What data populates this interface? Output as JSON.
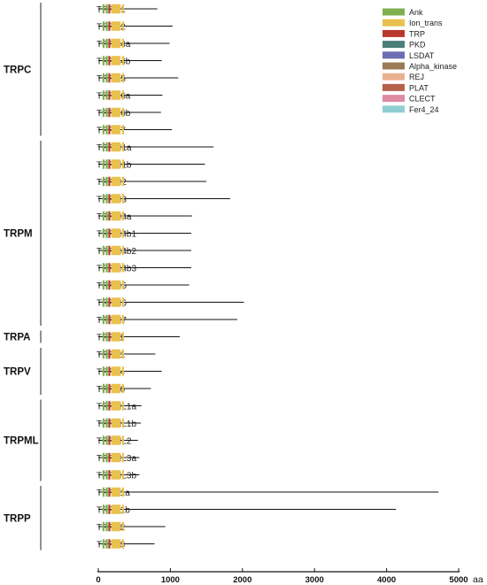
{
  "families": [
    {
      "name": "TRPC",
      "members": [
        "TRPC1",
        "TRPC2",
        "TRPC4a",
        "TRPC4b",
        "TRPC5",
        "TRPC6a",
        "TRPC6b",
        "TRPC7"
      ]
    },
    {
      "name": "TRPM",
      "members": [
        "TRPM1a",
        "TRPM1b",
        "TRPM2",
        "TRPM3",
        "TRPM4a",
        "TRPM4b1",
        "TRPM4b2",
        "TRPM4b3",
        "TRPM5",
        "TRPM6",
        "TRPM7"
      ]
    },
    {
      "name": "TRPA",
      "members": [
        "TRPA1"
      ]
    },
    {
      "name": "TRPV",
      "members": [
        "TRPV1",
        "TRPV4",
        "TRPV6"
      ]
    },
    {
      "name": "TRPML",
      "members": [
        "TRPML1a",
        "TRPML1b",
        "TRPML2",
        "TRPML3a",
        "TRPML3b"
      ]
    },
    {
      "name": "TRPP",
      "members": [
        "TRPP1a",
        "TRPP1b",
        "TRPP2",
        "TRPP3"
      ]
    }
  ],
  "legend": [
    {
      "label": "Ank",
      "color": "#7fb050"
    },
    {
      "label": "Ion_trans",
      "color": "#e8c14e"
    },
    {
      "label": "TRP",
      "color": "#b9382e"
    },
    {
      "label": "PKD",
      "color": "#4a7f7a"
    },
    {
      "label": "LSDAT",
      "color": "#6f6db5"
    },
    {
      "label": "Alpha_kinase",
      "color": "#9a7b57"
    },
    {
      "label": "REJ",
      "color": "#eab190"
    },
    {
      "label": "PLAT",
      "color": "#b5604a"
    },
    {
      "label": "CLECT",
      "color": "#de8aa0"
    },
    {
      "label": "Fer4_24",
      "color": "#8fcfd3"
    }
  ],
  "axis": {
    "ticks": [
      0,
      1000,
      2000,
      3000,
      4000,
      5000
    ],
    "tick_labels": [
      "0",
      "1000",
      "2000",
      "3000",
      "4000",
      "5000"
    ],
    "unit": "aa"
  },
  "proteins": {
    "TRPC1": {
      "length": 820,
      "domains": [
        [
          "Ank",
          60,
          85
        ],
        [
          "Ank",
          105,
          130
        ],
        [
          "TRP",
          140,
          165
        ],
        [
          "Ion_trans",
          180,
          310
        ],
        [
          "Ion_trans",
          330,
          345
        ]
      ]
    },
    "TRPC2": {
      "length": 1030,
      "domains": [
        [
          "Ank",
          60,
          85
        ],
        [
          "Ank",
          105,
          130
        ],
        [
          "TRP",
          140,
          165
        ],
        [
          "Ion_trans",
          180,
          310
        ],
        [
          "Ion_trans",
          330,
          345
        ]
      ]
    },
    "TRPC4a": {
      "length": 990,
      "domains": [
        [
          "Ank",
          60,
          85
        ],
        [
          "Ank",
          105,
          130
        ],
        [
          "TRP",
          140,
          165
        ],
        [
          "Ion_trans",
          180,
          310
        ],
        [
          "Ion_trans",
          330,
          345
        ]
      ]
    },
    "TRPC4b": {
      "length": 880,
      "domains": [
        [
          "Ank",
          60,
          85
        ],
        [
          "Ank",
          105,
          130
        ],
        [
          "TRP",
          140,
          165
        ],
        [
          "Ion_trans",
          180,
          310
        ],
        [
          "Ion_trans",
          330,
          345
        ]
      ]
    },
    "TRPC5": {
      "length": 1110,
      "domains": [
        [
          "Ank",
          60,
          85
        ],
        [
          "Ank",
          105,
          130
        ],
        [
          "TRP",
          140,
          165
        ],
        [
          "Ion_trans",
          180,
          310
        ],
        [
          "Ion_trans",
          330,
          345
        ]
      ]
    },
    "TRPC6a": {
      "length": 890,
      "domains": [
        [
          "Ank",
          60,
          85
        ],
        [
          "Ank",
          105,
          130
        ],
        [
          "TRP",
          140,
          165
        ],
        [
          "Ion_trans",
          180,
          310
        ],
        [
          "Ion_trans",
          330,
          345
        ]
      ]
    },
    "TRPC6b": {
      "length": 870,
      "domains": [
        [
          "Ank",
          60,
          85
        ],
        [
          "Ank",
          105,
          130
        ],
        [
          "TRP",
          140,
          165
        ],
        [
          "Ion_trans",
          180,
          310
        ],
        [
          "Ion_trans",
          330,
          345
        ]
      ]
    },
    "TRPC7": {
      "length": 1020,
      "domains": [
        [
          "Ank",
          60,
          85
        ],
        [
          "Ank",
          105,
          130
        ],
        [
          "TRP",
          140,
          165
        ],
        [
          "Ion_trans",
          180,
          310
        ],
        [
          "Ion_trans",
          330,
          345
        ]
      ]
    },
    "TRPM1a": {
      "length": 1600,
      "domains": [
        [
          "Ank",
          60,
          85
        ],
        [
          "Ank",
          105,
          130
        ],
        [
          "TRP",
          140,
          165
        ],
        [
          "Ion_trans",
          180,
          310
        ],
        [
          "Ion_trans",
          330,
          345
        ]
      ]
    },
    "TRPM1b": {
      "length": 1480,
      "domains": [
        [
          "Ank",
          60,
          85
        ],
        [
          "Ank",
          105,
          130
        ],
        [
          "TRP",
          140,
          165
        ],
        [
          "Ion_trans",
          180,
          310
        ],
        [
          "Ion_trans",
          330,
          345
        ]
      ]
    },
    "TRPM2": {
      "length": 1500,
      "domains": [
        [
          "Ank",
          60,
          85
        ],
        [
          "Ank",
          105,
          130
        ],
        [
          "TRP",
          140,
          165
        ],
        [
          "Ion_trans",
          180,
          310
        ],
        [
          "Ion_trans",
          330,
          345
        ]
      ]
    },
    "TRPM3": {
      "length": 1830,
      "domains": [
        [
          "Ank",
          60,
          85
        ],
        [
          "Ank",
          105,
          130
        ],
        [
          "TRP",
          140,
          165
        ],
        [
          "Ion_trans",
          180,
          310
        ],
        [
          "Ion_trans",
          330,
          345
        ]
      ]
    },
    "TRPM4a": {
      "length": 1300,
      "domains": [
        [
          "Ank",
          60,
          85
        ],
        [
          "Ank",
          105,
          130
        ],
        [
          "TRP",
          140,
          165
        ],
        [
          "Ion_trans",
          180,
          310
        ],
        [
          "Ion_trans",
          330,
          345
        ]
      ]
    },
    "TRPM4b1": {
      "length": 1290,
      "domains": [
        [
          "Ank",
          60,
          85
        ],
        [
          "Ank",
          105,
          130
        ],
        [
          "TRP",
          140,
          165
        ],
        [
          "Ion_trans",
          180,
          310
        ],
        [
          "Ion_trans",
          330,
          345
        ]
      ]
    },
    "TRPM4b2": {
      "length": 1290,
      "domains": [
        [
          "Ank",
          60,
          85
        ],
        [
          "Ank",
          105,
          130
        ],
        [
          "TRP",
          140,
          165
        ],
        [
          "Ion_trans",
          180,
          310
        ],
        [
          "Ion_trans",
          330,
          345
        ]
      ]
    },
    "TRPM4b3": {
      "length": 1290,
      "domains": [
        [
          "Ank",
          60,
          85
        ],
        [
          "Ank",
          105,
          130
        ],
        [
          "TRP",
          140,
          165
        ],
        [
          "Ion_trans",
          180,
          310
        ],
        [
          "Ion_trans",
          330,
          345
        ]
      ]
    },
    "TRPM5": {
      "length": 1260,
      "domains": [
        [
          "Ank",
          60,
          85
        ],
        [
          "Ank",
          105,
          130
        ],
        [
          "TRP",
          140,
          165
        ],
        [
          "Ion_trans",
          180,
          310
        ],
        [
          "Ion_trans",
          330,
          345
        ]
      ]
    },
    "TRPM6": {
      "length": 2020,
      "domains": [
        [
          "Ank",
          60,
          85
        ],
        [
          "Ank",
          105,
          130
        ],
        [
          "TRP",
          140,
          165
        ],
        [
          "Ion_trans",
          180,
          310
        ],
        [
          "Ion_trans",
          330,
          345
        ]
      ]
    },
    "TRPM7": {
      "length": 1930,
      "domains": [
        [
          "Ank",
          60,
          85
        ],
        [
          "Ank",
          105,
          130
        ],
        [
          "TRP",
          140,
          165
        ],
        [
          "Ion_trans",
          180,
          310
        ],
        [
          "Ion_trans",
          330,
          345
        ]
      ]
    },
    "TRPA1": {
      "length": 1130,
      "domains": [
        [
          "Ank",
          60,
          85
        ],
        [
          "Ank",
          105,
          130
        ],
        [
          "TRP",
          140,
          165
        ],
        [
          "Ion_trans",
          180,
          310
        ],
        [
          "Ion_trans",
          330,
          345
        ]
      ]
    },
    "TRPV1": {
      "length": 790,
      "domains": [
        [
          "Ank",
          60,
          85
        ],
        [
          "Ank",
          105,
          130
        ],
        [
          "TRP",
          140,
          165
        ],
        [
          "Ion_trans",
          180,
          310
        ],
        [
          "Ion_trans",
          330,
          345
        ]
      ]
    },
    "TRPV4": {
      "length": 880,
      "domains": [
        [
          "Ank",
          60,
          85
        ],
        [
          "Ank",
          105,
          130
        ],
        [
          "TRP",
          140,
          165
        ],
        [
          "Ion_trans",
          180,
          310
        ],
        [
          "Ion_trans",
          330,
          345
        ]
      ]
    },
    "TRPV6": {
      "length": 730,
      "domains": [
        [
          "Ank",
          60,
          85
        ],
        [
          "Ank",
          105,
          130
        ],
        [
          "TRP",
          140,
          165
        ],
        [
          "Ion_trans",
          180,
          310
        ],
        [
          "Ion_trans",
          330,
          345
        ]
      ]
    },
    "TRPML1a": {
      "length": 600,
      "domains": [
        [
          "Ank",
          60,
          85
        ],
        [
          "Ank",
          105,
          130
        ],
        [
          "TRP",
          140,
          165
        ],
        [
          "Ion_trans",
          180,
          310
        ],
        [
          "Ion_trans",
          330,
          345
        ]
      ]
    },
    "TRPML1b": {
      "length": 590,
      "domains": [
        [
          "Ank",
          60,
          85
        ],
        [
          "Ank",
          105,
          130
        ],
        [
          "TRP",
          140,
          165
        ],
        [
          "Ion_trans",
          180,
          310
        ],
        [
          "Ion_trans",
          330,
          345
        ]
      ]
    },
    "TRPML2": {
      "length": 550,
      "domains": [
        [
          "Ank",
          60,
          85
        ],
        [
          "Ank",
          105,
          130
        ],
        [
          "TRP",
          140,
          165
        ],
        [
          "Ion_trans",
          180,
          310
        ],
        [
          "Ion_trans",
          330,
          345
        ]
      ]
    },
    "TRPML3a": {
      "length": 570,
      "domains": [
        [
          "Ank",
          60,
          85
        ],
        [
          "Ank",
          105,
          130
        ],
        [
          "TRP",
          140,
          165
        ],
        [
          "Ion_trans",
          180,
          310
        ],
        [
          "Ion_trans",
          330,
          345
        ]
      ]
    },
    "TRPML3b": {
      "length": 570,
      "domains": [
        [
          "Ank",
          60,
          85
        ],
        [
          "Ank",
          105,
          130
        ],
        [
          "TRP",
          140,
          165
        ],
        [
          "Ion_trans",
          180,
          310
        ],
        [
          "Ion_trans",
          330,
          345
        ]
      ]
    },
    "TRPP1a": {
      "length": 4720,
      "domains": [
        [
          "Ank",
          60,
          85
        ],
        [
          "Ank",
          105,
          130
        ],
        [
          "TRP",
          140,
          165
        ],
        [
          "Ion_trans",
          180,
          310
        ],
        [
          "Ion_trans",
          330,
          345
        ]
      ]
    },
    "TRPP1b": {
      "length": 4130,
      "domains": [
        [
          "Ank",
          60,
          85
        ],
        [
          "Ank",
          105,
          130
        ],
        [
          "TRP",
          140,
          165
        ],
        [
          "Ion_trans",
          180,
          310
        ],
        [
          "Ion_trans",
          330,
          345
        ]
      ]
    },
    "TRPP2": {
      "length": 930,
      "domains": [
        [
          "Ank",
          60,
          85
        ],
        [
          "Ank",
          105,
          130
        ],
        [
          "TRP",
          140,
          165
        ],
        [
          "Ion_trans",
          180,
          310
        ],
        [
          "Ion_trans",
          330,
          345
        ]
      ]
    },
    "TRPP3": {
      "length": 780,
      "domains": [
        [
          "Ank",
          60,
          85
        ],
        [
          "Ank",
          105,
          130
        ],
        [
          "TRP",
          140,
          165
        ],
        [
          "Ion_trans",
          180,
          310
        ],
        [
          "Ion_trans",
          330,
          345
        ]
      ]
    }
  }
}
